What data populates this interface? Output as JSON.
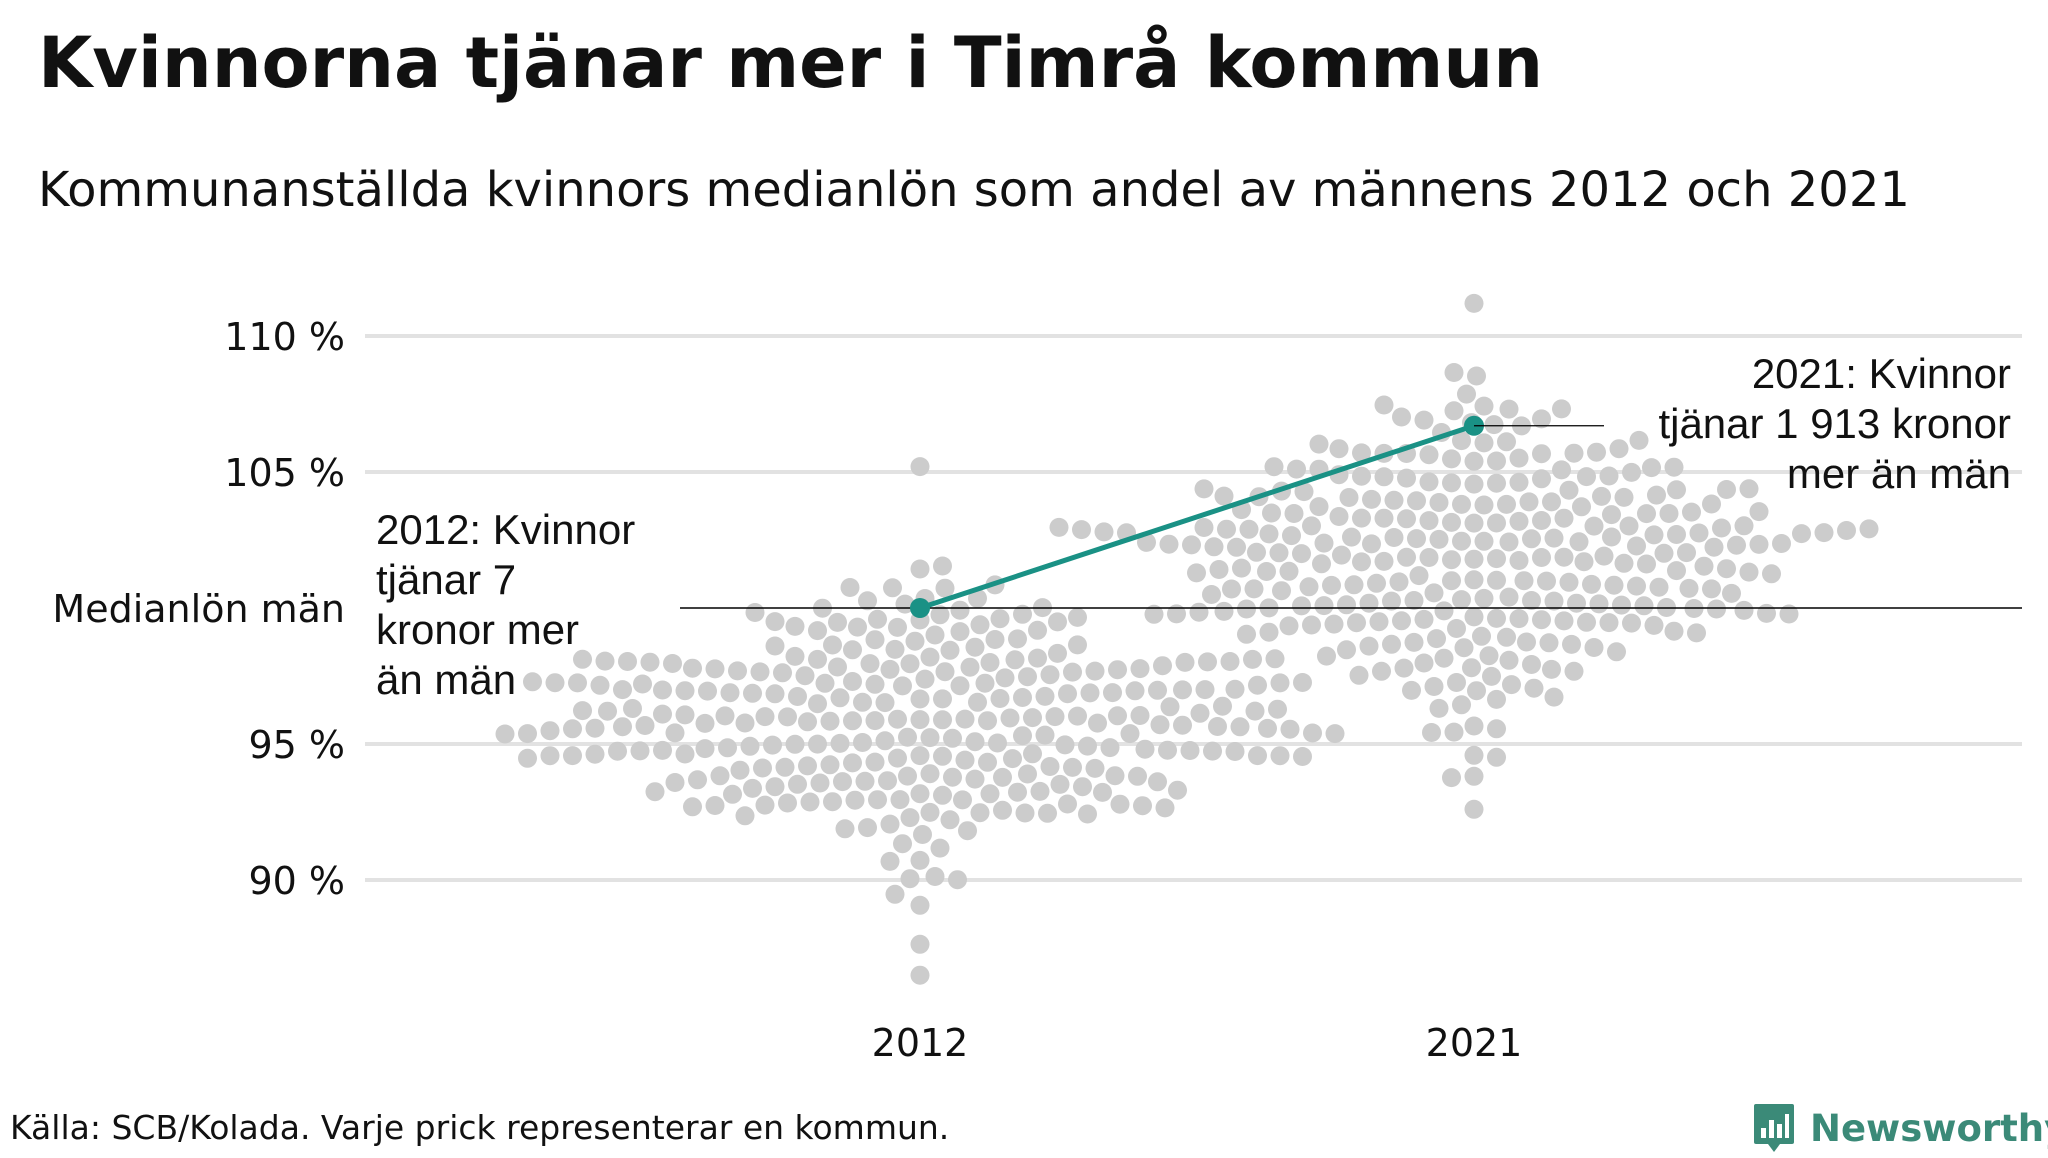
{
  "title": "Kvinnorna tjänar mer i Timrå kommun",
  "subtitle": "Kommunanställda kvinnors medianlön som andel av männens 2012 och 2021",
  "source": "Källa: SCB/Kolada. Varje prick representerar en kommun.",
  "brand": "Newsworthy",
  "colors": {
    "dots": "#cccccc",
    "highlight": "#1a9185",
    "gridline": "#e2e2e2",
    "reference_line": "#000000",
    "brand": "#3b8a78"
  },
  "chart_data": {
    "type": "scatter",
    "subtype": "beeswarm",
    "categories": [
      "2012",
      "2021"
    ],
    "ylim": [
      85.5,
      111.5
    ],
    "y_ticks": [
      {
        "value": 90,
        "label": "90 %"
      },
      {
        "value": 95,
        "label": "95 %"
      },
      {
        "value": 100,
        "label": "Medianlön män"
      },
      {
        "value": 105,
        "label": "105 %"
      },
      {
        "value": 110,
        "label": "110 %"
      }
    ],
    "reference_line": 100,
    "grid": true,
    "distributions": [
      {
        "category": "2012",
        "count": 290,
        "mean": 95.9,
        "sd": 2.4,
        "min": 86.5,
        "max": 105.2
      },
      {
        "category": "2021",
        "count": 290,
        "mean": 101.8,
        "sd": 2.8,
        "min": 92.6,
        "max": 111.2
      }
    ],
    "highlight": {
      "name": "Timrå kommun",
      "points": [
        {
          "x": "2012",
          "y": 100.0
        },
        {
          "x": "2021",
          "y": 106.7
        }
      ]
    },
    "annotations": [
      {
        "category": "2012",
        "y": 100.0,
        "lines": [
          "2012: Kvinnor",
          "tjänar 7",
          "kronor mer",
          "än män"
        ]
      },
      {
        "category": "2021",
        "y": 106.7,
        "lines": [
          "2021: Kvinnor",
          "tjänar 1 913 kronor",
          "mer än män"
        ]
      }
    ]
  }
}
